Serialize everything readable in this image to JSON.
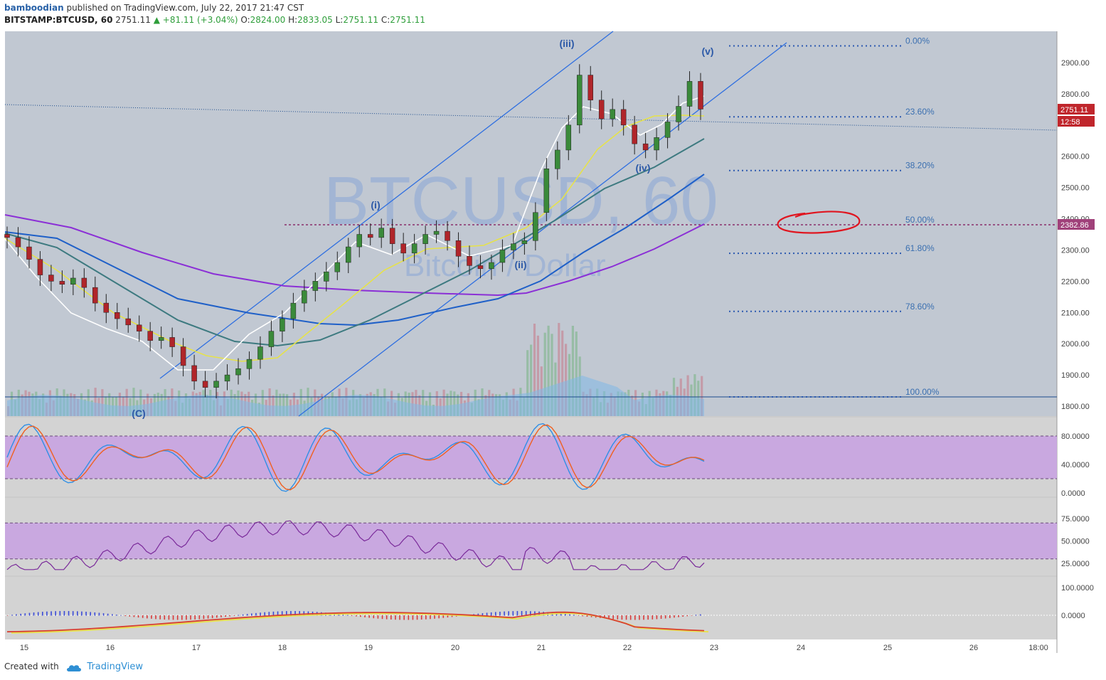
{
  "header": {
    "author": "bamboodian",
    "published": "published on TradingView.com, July 22, 2017 21:47 CST",
    "symbol": "BITSTAMP:BTCUSD, 60",
    "last": "2751.11",
    "change": "▲ +81.11 (+3.04%)",
    "o_label": "O:",
    "o_value": "2824.00",
    "h_label": "H:",
    "h_value": "2833.05",
    "l_label": "L:",
    "l_value": "2751.11",
    "c_label": "C:",
    "c_value": "2751.11"
  },
  "footer": {
    "created_with": "Created with",
    "brand": "TradingView"
  },
  "watermark": {
    "main": "BTCUSD, 60",
    "sub": "Bitcoin / Dollar"
  },
  "colors": {
    "bg_main": "#c1c8d2",
    "bg_osc": "#d0d0d0",
    "band": "#c9a8e0",
    "up": "#3a8a3a",
    "down": "#b0252a",
    "fib": "#2d5ab0"
  },
  "chart_data": {
    "type": "candlestick",
    "title": "BTCUSD, 60",
    "price_axis": {
      "ylim": [
        1770,
        2980
      ],
      "ticks": [
        "2900.00",
        "2800.00",
        "2600.00",
        "2500.00",
        "2400.00",
        "2300.00",
        "2200.00",
        "2100.00",
        "2000.00",
        "1900.00",
        "1800.00"
      ]
    },
    "time_axis": {
      "labels": [
        "15",
        "16",
        "17",
        "18",
        "19",
        "20",
        "21",
        "22",
        "23",
        "24",
        "25",
        "26",
        "18:00"
      ]
    },
    "price_badges": {
      "last": "2751.11",
      "countdown": "12:58",
      "level": "2382.86"
    },
    "fibonacci": [
      {
        "label": "0.00%",
        "price": 2917
      },
      {
        "label": "23.60%",
        "price": 2690
      },
      {
        "label": "38.20%",
        "price": 2518
      },
      {
        "label": "50.00%",
        "price": 2383
      },
      {
        "label": "61.80%",
        "price": 2253
      },
      {
        "label": "78.60%",
        "price": 2067
      },
      {
        "label": "100.00%",
        "price": 1825
      }
    ],
    "wave_labels": [
      "(i)",
      "(ii)",
      "(iii)",
      "(iv)",
      "(v)",
      "(C)"
    ],
    "price_series": [
      [
        "15",
        2340
      ],
      [
        "15",
        2310
      ],
      [
        "15",
        2270
      ],
      [
        "15",
        2220
      ],
      [
        "15",
        2200
      ],
      [
        "15",
        2190
      ],
      [
        "15",
        2210
      ],
      [
        "15",
        2180
      ],
      [
        "16",
        2130
      ],
      [
        "16",
        2100
      ],
      [
        "16",
        2080
      ],
      [
        "16",
        2060
      ],
      [
        "16",
        2040
      ],
      [
        "16",
        2010
      ],
      [
        "16",
        2020
      ],
      [
        "16",
        1990
      ],
      [
        "17",
        1930
      ],
      [
        "17",
        1880
      ],
      [
        "17",
        1860
      ],
      [
        "17",
        1880
      ],
      [
        "17",
        1900
      ],
      [
        "17",
        1920
      ],
      [
        "17",
        1950
      ],
      [
        "17",
        1990
      ],
      [
        "18",
        2040
      ],
      [
        "18",
        2080
      ],
      [
        "18",
        2130
      ],
      [
        "18",
        2170
      ],
      [
        "18",
        2200
      ],
      [
        "18",
        2230
      ],
      [
        "18",
        2260
      ],
      [
        "18",
        2310
      ],
      [
        "19",
        2350
      ],
      [
        "19",
        2340
      ],
      [
        "19",
        2370
      ],
      [
        "19",
        2320
      ],
      [
        "19",
        2290
      ],
      [
        "19",
        2320
      ],
      [
        "19",
        2350
      ],
      [
        "19",
        2360
      ],
      [
        "20",
        2330
      ],
      [
        "20",
        2280
      ],
      [
        "20",
        2250
      ],
      [
        "20",
        2240
      ],
      [
        "20",
        2260
      ],
      [
        "20",
        2300
      ],
      [
        "20",
        2320
      ],
      [
        "20",
        2330
      ],
      [
        "21",
        2420
      ],
      [
        "21",
        2560
      ],
      [
        "21",
        2620
      ],
      [
        "21",
        2700
      ],
      [
        "21",
        2860
      ],
      [
        "21",
        2780
      ],
      [
        "21",
        2720
      ],
      [
        "21",
        2750
      ],
      [
        "22",
        2700
      ],
      [
        "22",
        2640
      ],
      [
        "22",
        2620
      ],
      [
        "22",
        2660
      ],
      [
        "22",
        2710
      ],
      [
        "22",
        2760
      ],
      [
        "22",
        2840
      ],
      [
        "22",
        2751
      ]
    ],
    "stochastic": {
      "ticks": [
        "80.0000",
        "40.0000",
        "0.0000"
      ],
      "band": [
        20,
        80
      ]
    },
    "rsi": {
      "ticks": [
        "75.0000",
        "50.0000",
        "25.0000"
      ],
      "band": [
        30,
        70
      ]
    },
    "macd": {
      "ticks": [
        "100.0000",
        "0.0000"
      ]
    }
  }
}
